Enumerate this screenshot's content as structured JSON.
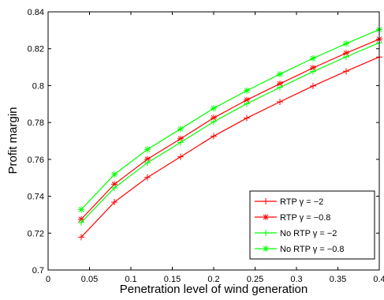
{
  "chart_data": {
    "type": "line",
    "xlabel": "Penetration level of wind generation",
    "ylabel": "Profit margin",
    "xlim": [
      0,
      0.4
    ],
    "ylim": [
      0.7,
      0.84
    ],
    "x_ticks": [
      "0",
      "0.05",
      "0.1",
      "0.15",
      "0.2",
      "0.25",
      "0.3",
      "0.35",
      "0.4"
    ],
    "y_ticks": [
      "0.7",
      "0.72",
      "0.74",
      "0.76",
      "0.78",
      "0.8",
      "0.82",
      "0.84"
    ],
    "grid": "off",
    "legend_position": "bottom-right",
    "x": [
      0.04,
      0.08,
      0.12,
      0.16,
      0.2,
      0.24,
      0.28,
      0.32,
      0.36,
      0.4
    ],
    "series": [
      {
        "name": "RTP γ = −2",
        "color": "#ff0000",
        "marker": "plus",
        "values": [
          0.7178,
          0.7368,
          0.7502,
          0.7614,
          0.7726,
          0.7824,
          0.7912,
          0.7998,
          0.8078,
          0.8155
        ]
      },
      {
        "name": "RTP γ = −0.8",
        "color": "#ff0000",
        "marker": "star",
        "values": [
          0.7275,
          0.7465,
          0.7601,
          0.7712,
          0.7825,
          0.7922,
          0.801,
          0.8096,
          0.8176,
          0.8252
        ]
      },
      {
        "name": "No RTP γ = −2",
        "color": "#00ff00",
        "marker": "plus",
        "values": [
          0.7258,
          0.7445,
          0.7582,
          0.7692,
          0.7804,
          0.7902,
          0.799,
          0.8076,
          0.8156,
          0.8232
        ]
      },
      {
        "name": "No RTP γ = −0.8",
        "color": "#00ff00",
        "marker": "star",
        "values": [
          0.7328,
          0.7518,
          0.7654,
          0.7765,
          0.7877,
          0.7973,
          0.8062,
          0.8148,
          0.8228,
          0.8304
        ]
      }
    ]
  }
}
